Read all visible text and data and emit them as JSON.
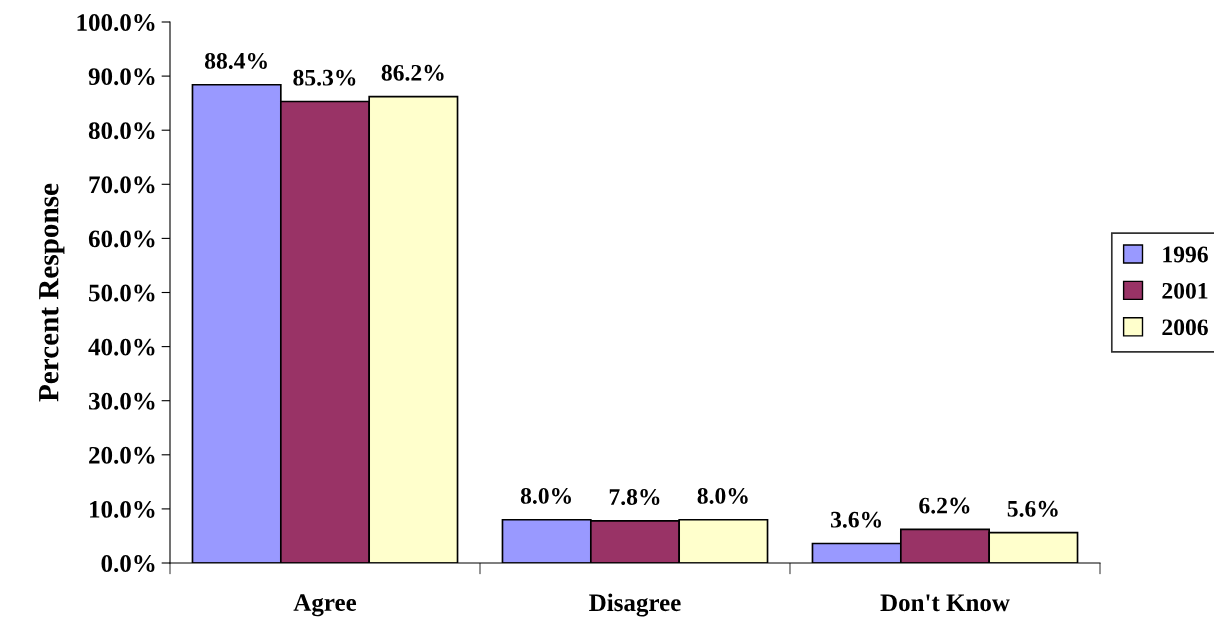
{
  "chart_data": {
    "type": "bar",
    "ylabel": "Percent Response",
    "categories": [
      "Agree",
      "Disagree",
      "Don't Know"
    ],
    "series": [
      {
        "name": "1996",
        "color": "#9999ff",
        "values": [
          88.4,
          8.0,
          3.6
        ],
        "value_labels": [
          "88.4%",
          "8.0%",
          "3.6%"
        ]
      },
      {
        "name": "2001",
        "color": "#993366",
        "values": [
          85.3,
          7.8,
          6.2
        ],
        "value_labels": [
          "85.3%",
          "7.8%",
          "6.2%"
        ]
      },
      {
        "name": "2006",
        "color": "#ffffcc",
        "values": [
          86.2,
          8.0,
          5.6
        ],
        "value_labels": [
          "86.2%",
          "8.0%",
          "5.6%"
        ]
      }
    ],
    "ylim": [
      0,
      100
    ],
    "yticks": [
      {
        "value": 0,
        "label": "0.0%"
      },
      {
        "value": 10,
        "label": "10.0%"
      },
      {
        "value": 20,
        "label": "20.0%"
      },
      {
        "value": 30,
        "label": "30.0%"
      },
      {
        "value": 40,
        "label": "40.0%"
      },
      {
        "value": 50,
        "label": "50.0%"
      },
      {
        "value": 60,
        "label": "60.0%"
      },
      {
        "value": 70,
        "label": "70.0%"
      },
      {
        "value": 80,
        "label": "80.0%"
      },
      {
        "value": 90,
        "label": "90.0%"
      },
      {
        "value": 100,
        "label": "100.0%"
      }
    ],
    "grid": false,
    "legend": "right"
  }
}
